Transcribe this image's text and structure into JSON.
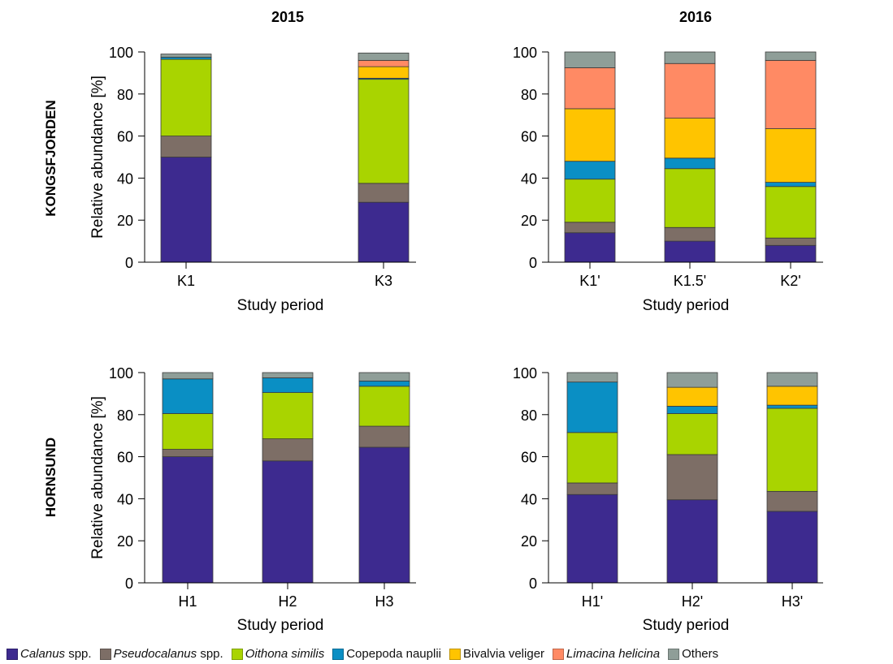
{
  "figure": {
    "col_titles": [
      "2015",
      "2016"
    ],
    "row_titles": [
      "KONGSFJORDEN",
      "HORNSUND"
    ]
  },
  "colors": {
    "calanus": "#3d2a8f",
    "pseudocalanus": "#7d6e66",
    "oithona": "#a9d400",
    "copepoda": "#0a8fc4",
    "bivalvia": "#ffc400",
    "limacina": "#ff8a64",
    "others": "#8f9e98"
  },
  "legend": [
    {
      "key": "calanus",
      "italic": "Calanus",
      "rest": " spp."
    },
    {
      "key": "pseudocalanus",
      "italic": "Pseudocalanus",
      "rest": " spp."
    },
    {
      "key": "oithona",
      "italic": "Oithona  similis",
      "rest": ""
    },
    {
      "key": "copepoda",
      "italic": "",
      "rest": "Copepoda nauplii"
    },
    {
      "key": "bivalvia",
      "italic": "",
      "rest": "Bivalvia veliger"
    },
    {
      "key": "limacina",
      "italic": "Limacina helicina",
      "rest": ""
    },
    {
      "key": "others",
      "italic": "",
      "rest": "Others"
    }
  ],
  "chart_data": [
    {
      "type": "bar",
      "stacked": true,
      "title": "2015",
      "row_label": "KONGSFJORDEN",
      "xlabel": "Study period",
      "ylabel": "Relative abundance [%]",
      "ylim": [
        0,
        100
      ],
      "yticks": [
        0,
        20,
        40,
        60,
        80,
        100
      ],
      "categories": [
        "K1",
        "K3"
      ],
      "series": [
        {
          "name": "Calanus spp.",
          "key": "calanus",
          "values": [
            50,
            28.5
          ]
        },
        {
          "name": "Pseudocalanus spp.",
          "key": "pseudocalanus",
          "values": [
            10,
            9
          ]
        },
        {
          "name": "Oithona similis",
          "key": "oithona",
          "values": [
            36.5,
            49.5
          ]
        },
        {
          "name": "Copepoda nauplii",
          "key": "copepoda",
          "values": [
            1,
            0.5
          ]
        },
        {
          "name": "Bivalvia veliger",
          "key": "bivalvia",
          "values": [
            0,
            5.5
          ]
        },
        {
          "name": "Limacina helicina",
          "key": "limacina",
          "values": [
            0,
            3
          ]
        },
        {
          "name": "Others",
          "key": "others",
          "values": [
            1.5,
            3.5
          ]
        }
      ]
    },
    {
      "type": "bar",
      "stacked": true,
      "title": "2016",
      "row_label": "KONGSFJORDEN",
      "xlabel": "Study period",
      "ylabel": "",
      "ylim": [
        0,
        100
      ],
      "yticks": [
        0,
        20,
        40,
        60,
        80,
        100
      ],
      "categories": [
        "K1'",
        "K1.5'",
        "K2'"
      ],
      "series": [
        {
          "name": "Calanus spp.",
          "key": "calanus",
          "values": [
            14,
            10,
            8
          ]
        },
        {
          "name": "Pseudocalanus spp.",
          "key": "pseudocalanus",
          "values": [
            5,
            6.5,
            3.5
          ]
        },
        {
          "name": "Oithona similis",
          "key": "oithona",
          "values": [
            20.5,
            28,
            24.5
          ]
        },
        {
          "name": "Copepoda nauplii",
          "key": "copepoda",
          "values": [
            8.5,
            5,
            2
          ]
        },
        {
          "name": "Bivalvia veliger",
          "key": "bivalvia",
          "values": [
            25,
            19,
            25.5
          ]
        },
        {
          "name": "Limacina helicina",
          "key": "limacina",
          "values": [
            19.5,
            26,
            32.5
          ]
        },
        {
          "name": "Others",
          "key": "others",
          "values": [
            7.5,
            5.5,
            4
          ]
        }
      ]
    },
    {
      "type": "bar",
      "stacked": true,
      "title": "2015",
      "row_label": "HORNSUND",
      "xlabel": "Study period",
      "ylabel": "Relative abundance [%]",
      "ylim": [
        0,
        100
      ],
      "yticks": [
        0,
        20,
        40,
        60,
        80,
        100
      ],
      "categories": [
        "H1",
        "H2",
        "H3"
      ],
      "series": [
        {
          "name": "Calanus spp.",
          "key": "calanus",
          "values": [
            60,
            58,
            64.5
          ]
        },
        {
          "name": "Pseudocalanus spp.",
          "key": "pseudocalanus",
          "values": [
            3.5,
            10.5,
            10
          ]
        },
        {
          "name": "Oithona similis",
          "key": "oithona",
          "values": [
            17,
            22,
            19
          ]
        },
        {
          "name": "Copepoda nauplii",
          "key": "copepoda",
          "values": [
            16.5,
            7,
            2.5
          ]
        },
        {
          "name": "Bivalvia veliger",
          "key": "bivalvia",
          "values": [
            0,
            0,
            0
          ]
        },
        {
          "name": "Limacina helicina",
          "key": "limacina",
          "values": [
            0,
            0,
            0
          ]
        },
        {
          "name": "Others",
          "key": "others",
          "values": [
            3,
            2.5,
            4
          ]
        }
      ]
    },
    {
      "type": "bar",
      "stacked": true,
      "title": "2016",
      "row_label": "HORNSUND",
      "xlabel": "Study period",
      "ylabel": "",
      "ylim": [
        0,
        100
      ],
      "yticks": [
        0,
        20,
        40,
        60,
        80,
        100
      ],
      "categories": [
        "H1'",
        "H2'",
        "H3'"
      ],
      "series": [
        {
          "name": "Calanus spp.",
          "key": "calanus",
          "values": [
            42,
            39.5,
            34
          ]
        },
        {
          "name": "Pseudocalanus spp.",
          "key": "pseudocalanus",
          "values": [
            5.5,
            21.5,
            9.5
          ]
        },
        {
          "name": "Oithona similis",
          "key": "oithona",
          "values": [
            24,
            19.5,
            39.5
          ]
        },
        {
          "name": "Copepoda nauplii",
          "key": "copepoda",
          "values": [
            24,
            3.5,
            1.5
          ]
        },
        {
          "name": "Bivalvia veliger",
          "key": "bivalvia",
          "values": [
            0,
            9,
            9
          ]
        },
        {
          "name": "Limacina helicina",
          "key": "limacina",
          "values": [
            0,
            0,
            0
          ]
        },
        {
          "name": "Others",
          "key": "others",
          "values": [
            4.5,
            7,
            6.5
          ]
        }
      ]
    }
  ]
}
